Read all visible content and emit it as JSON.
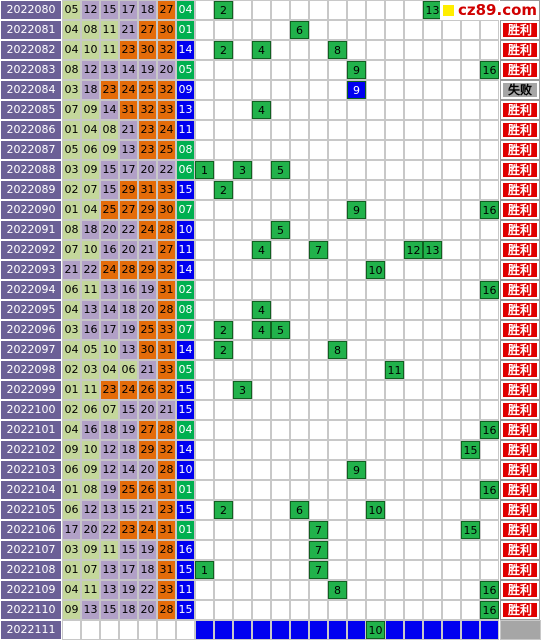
{
  "logo": "cz89.com",
  "settings": {
    "mark_color": "#21b24b",
    "band_color": "#0000f0",
    "result_colors": {
      "胜利": "#e00000",
      "失败": "#a6a6a6"
    },
    "empty_result_color": "#a6a6a6"
  },
  "rows": [
    {
      "period": "2022080",
      "reds": [
        "05",
        "12",
        "15",
        "17",
        "18",
        "27"
      ],
      "blue": "04",
      "marks": [
        2,
        13
      ],
      "result": "胜利"
    },
    {
      "period": "2022081",
      "reds": [
        "04",
        "08",
        "11",
        "21",
        "27",
        "30"
      ],
      "blue": "01",
      "marks": [
        6
      ],
      "result": "胜利"
    },
    {
      "period": "2022082",
      "reds": [
        "04",
        "10",
        "11",
        "23",
        "30",
        "32"
      ],
      "blue": "14",
      "marks": [
        2,
        4,
        8
      ],
      "result": "胜利"
    },
    {
      "period": "2022083",
      "reds": [
        "08",
        "12",
        "13",
        "14",
        "19",
        "20"
      ],
      "blue": "05",
      "marks": [
        9,
        16
      ],
      "result": "胜利"
    },
    {
      "period": "2022084",
      "reds": [
        "03",
        "18",
        "23",
        "24",
        "25",
        "32"
      ],
      "blue": "09",
      "marks": [
        9
      ],
      "mark_color": "#0000f0",
      "result": "失败"
    },
    {
      "period": "2022085",
      "reds": [
        "07",
        "09",
        "14",
        "31",
        "32",
        "33"
      ],
      "blue": "13",
      "marks": [
        4
      ],
      "result": "胜利"
    },
    {
      "period": "2022086",
      "reds": [
        "01",
        "04",
        "08",
        "21",
        "23",
        "24"
      ],
      "blue": "11",
      "marks": [],
      "result": "胜利"
    },
    {
      "period": "2022087",
      "reds": [
        "05",
        "06",
        "09",
        "13",
        "23",
        "25"
      ],
      "blue": "08",
      "marks": [],
      "result": "胜利"
    },
    {
      "period": "2022088",
      "reds": [
        "03",
        "09",
        "15",
        "17",
        "20",
        "22"
      ],
      "blue": "06",
      "marks": [
        1,
        3,
        5
      ],
      "result": "胜利"
    },
    {
      "period": "2022089",
      "reds": [
        "02",
        "07",
        "15",
        "29",
        "31",
        "33"
      ],
      "blue": "15",
      "marks": [
        2
      ],
      "result": "胜利"
    },
    {
      "period": "2022090",
      "reds": [
        "01",
        "04",
        "25",
        "27",
        "29",
        "30"
      ],
      "blue": "07",
      "marks": [
        9,
        16
      ],
      "result": "胜利"
    },
    {
      "period": "2022091",
      "reds": [
        "08",
        "18",
        "20",
        "22",
        "24",
        "28"
      ],
      "blue": "10",
      "marks": [
        5
      ],
      "result": "胜利"
    },
    {
      "period": "2022092",
      "reds": [
        "07",
        "10",
        "16",
        "20",
        "21",
        "27"
      ],
      "blue": "11",
      "marks": [
        4,
        7,
        12,
        13
      ],
      "result": "胜利"
    },
    {
      "period": "2022093",
      "reds": [
        "21",
        "22",
        "24",
        "28",
        "29",
        "32"
      ],
      "blue": "14",
      "marks": [
        10
      ],
      "result": "胜利"
    },
    {
      "period": "2022094",
      "reds": [
        "06",
        "11",
        "13",
        "16",
        "19",
        "31"
      ],
      "blue": "02",
      "marks": [
        16
      ],
      "result": "胜利"
    },
    {
      "period": "2022095",
      "reds": [
        "04",
        "13",
        "14",
        "18",
        "20",
        "28"
      ],
      "blue": "08",
      "marks": [
        4
      ],
      "result": "胜利"
    },
    {
      "period": "2022096",
      "reds": [
        "03",
        "16",
        "17",
        "19",
        "25",
        "33"
      ],
      "blue": "07",
      "marks": [
        2,
        4,
        5
      ],
      "result": "胜利"
    },
    {
      "period": "2022097",
      "reds": [
        "04",
        "05",
        "10",
        "13",
        "30",
        "31"
      ],
      "blue": "14",
      "marks": [
        2,
        8
      ],
      "result": "胜利"
    },
    {
      "period": "2022098",
      "reds": [
        "02",
        "03",
        "04",
        "06",
        "21",
        "33"
      ],
      "blue": "05",
      "marks": [
        11
      ],
      "result": "胜利"
    },
    {
      "period": "2022099",
      "reds": [
        "01",
        "11",
        "23",
        "24",
        "26",
        "32"
      ],
      "blue": "15",
      "marks": [
        3
      ],
      "result": "胜利"
    },
    {
      "period": "2022100",
      "reds": [
        "02",
        "06",
        "07",
        "15",
        "20",
        "21"
      ],
      "blue": "15",
      "marks": [],
      "result": "胜利"
    },
    {
      "period": "2022101",
      "reds": [
        "04",
        "16",
        "18",
        "19",
        "27",
        "28"
      ],
      "blue": "04",
      "marks": [
        16
      ],
      "result": "胜利"
    },
    {
      "period": "2022102",
      "reds": [
        "09",
        "10",
        "12",
        "18",
        "29",
        "32"
      ],
      "blue": "14",
      "marks": [
        15
      ],
      "result": "胜利"
    },
    {
      "period": "2022103",
      "reds": [
        "06",
        "09",
        "12",
        "14",
        "20",
        "28"
      ],
      "blue": "10",
      "marks": [
        9
      ],
      "result": "胜利"
    },
    {
      "period": "2022104",
      "reds": [
        "01",
        "08",
        "19",
        "25",
        "26",
        "31"
      ],
      "blue": "01",
      "marks": [
        16
      ],
      "result": "胜利"
    },
    {
      "period": "2022105",
      "reds": [
        "06",
        "12",
        "13",
        "15",
        "21",
        "23"
      ],
      "blue": "15",
      "marks": [
        2,
        6,
        10
      ],
      "result": "胜利"
    },
    {
      "period": "2022106",
      "reds": [
        "17",
        "20",
        "22",
        "23",
        "24",
        "31"
      ],
      "blue": "01",
      "marks": [
        7,
        15
      ],
      "result": "胜利"
    },
    {
      "period": "2022107",
      "reds": [
        "03",
        "09",
        "11",
        "15",
        "19",
        "28"
      ],
      "blue": "16",
      "marks": [
        7
      ],
      "result": "胜利"
    },
    {
      "period": "2022108",
      "reds": [
        "01",
        "07",
        "13",
        "17",
        "18",
        "31"
      ],
      "blue": "15",
      "marks": [
        1,
        7
      ],
      "result": "胜利"
    },
    {
      "period": "2022109",
      "reds": [
        "04",
        "11",
        "13",
        "19",
        "22",
        "33"
      ],
      "blue": "11",
      "marks": [
        8,
        16
      ],
      "result": "胜利"
    },
    {
      "period": "2022110",
      "reds": [
        "09",
        "13",
        "15",
        "18",
        "20",
        "28"
      ],
      "blue": "15",
      "marks": [
        16
      ],
      "result": "胜利"
    },
    {
      "period": "2022111",
      "reds": [],
      "blue": null,
      "marks": [
        10
      ],
      "band": true,
      "result": null
    }
  ]
}
